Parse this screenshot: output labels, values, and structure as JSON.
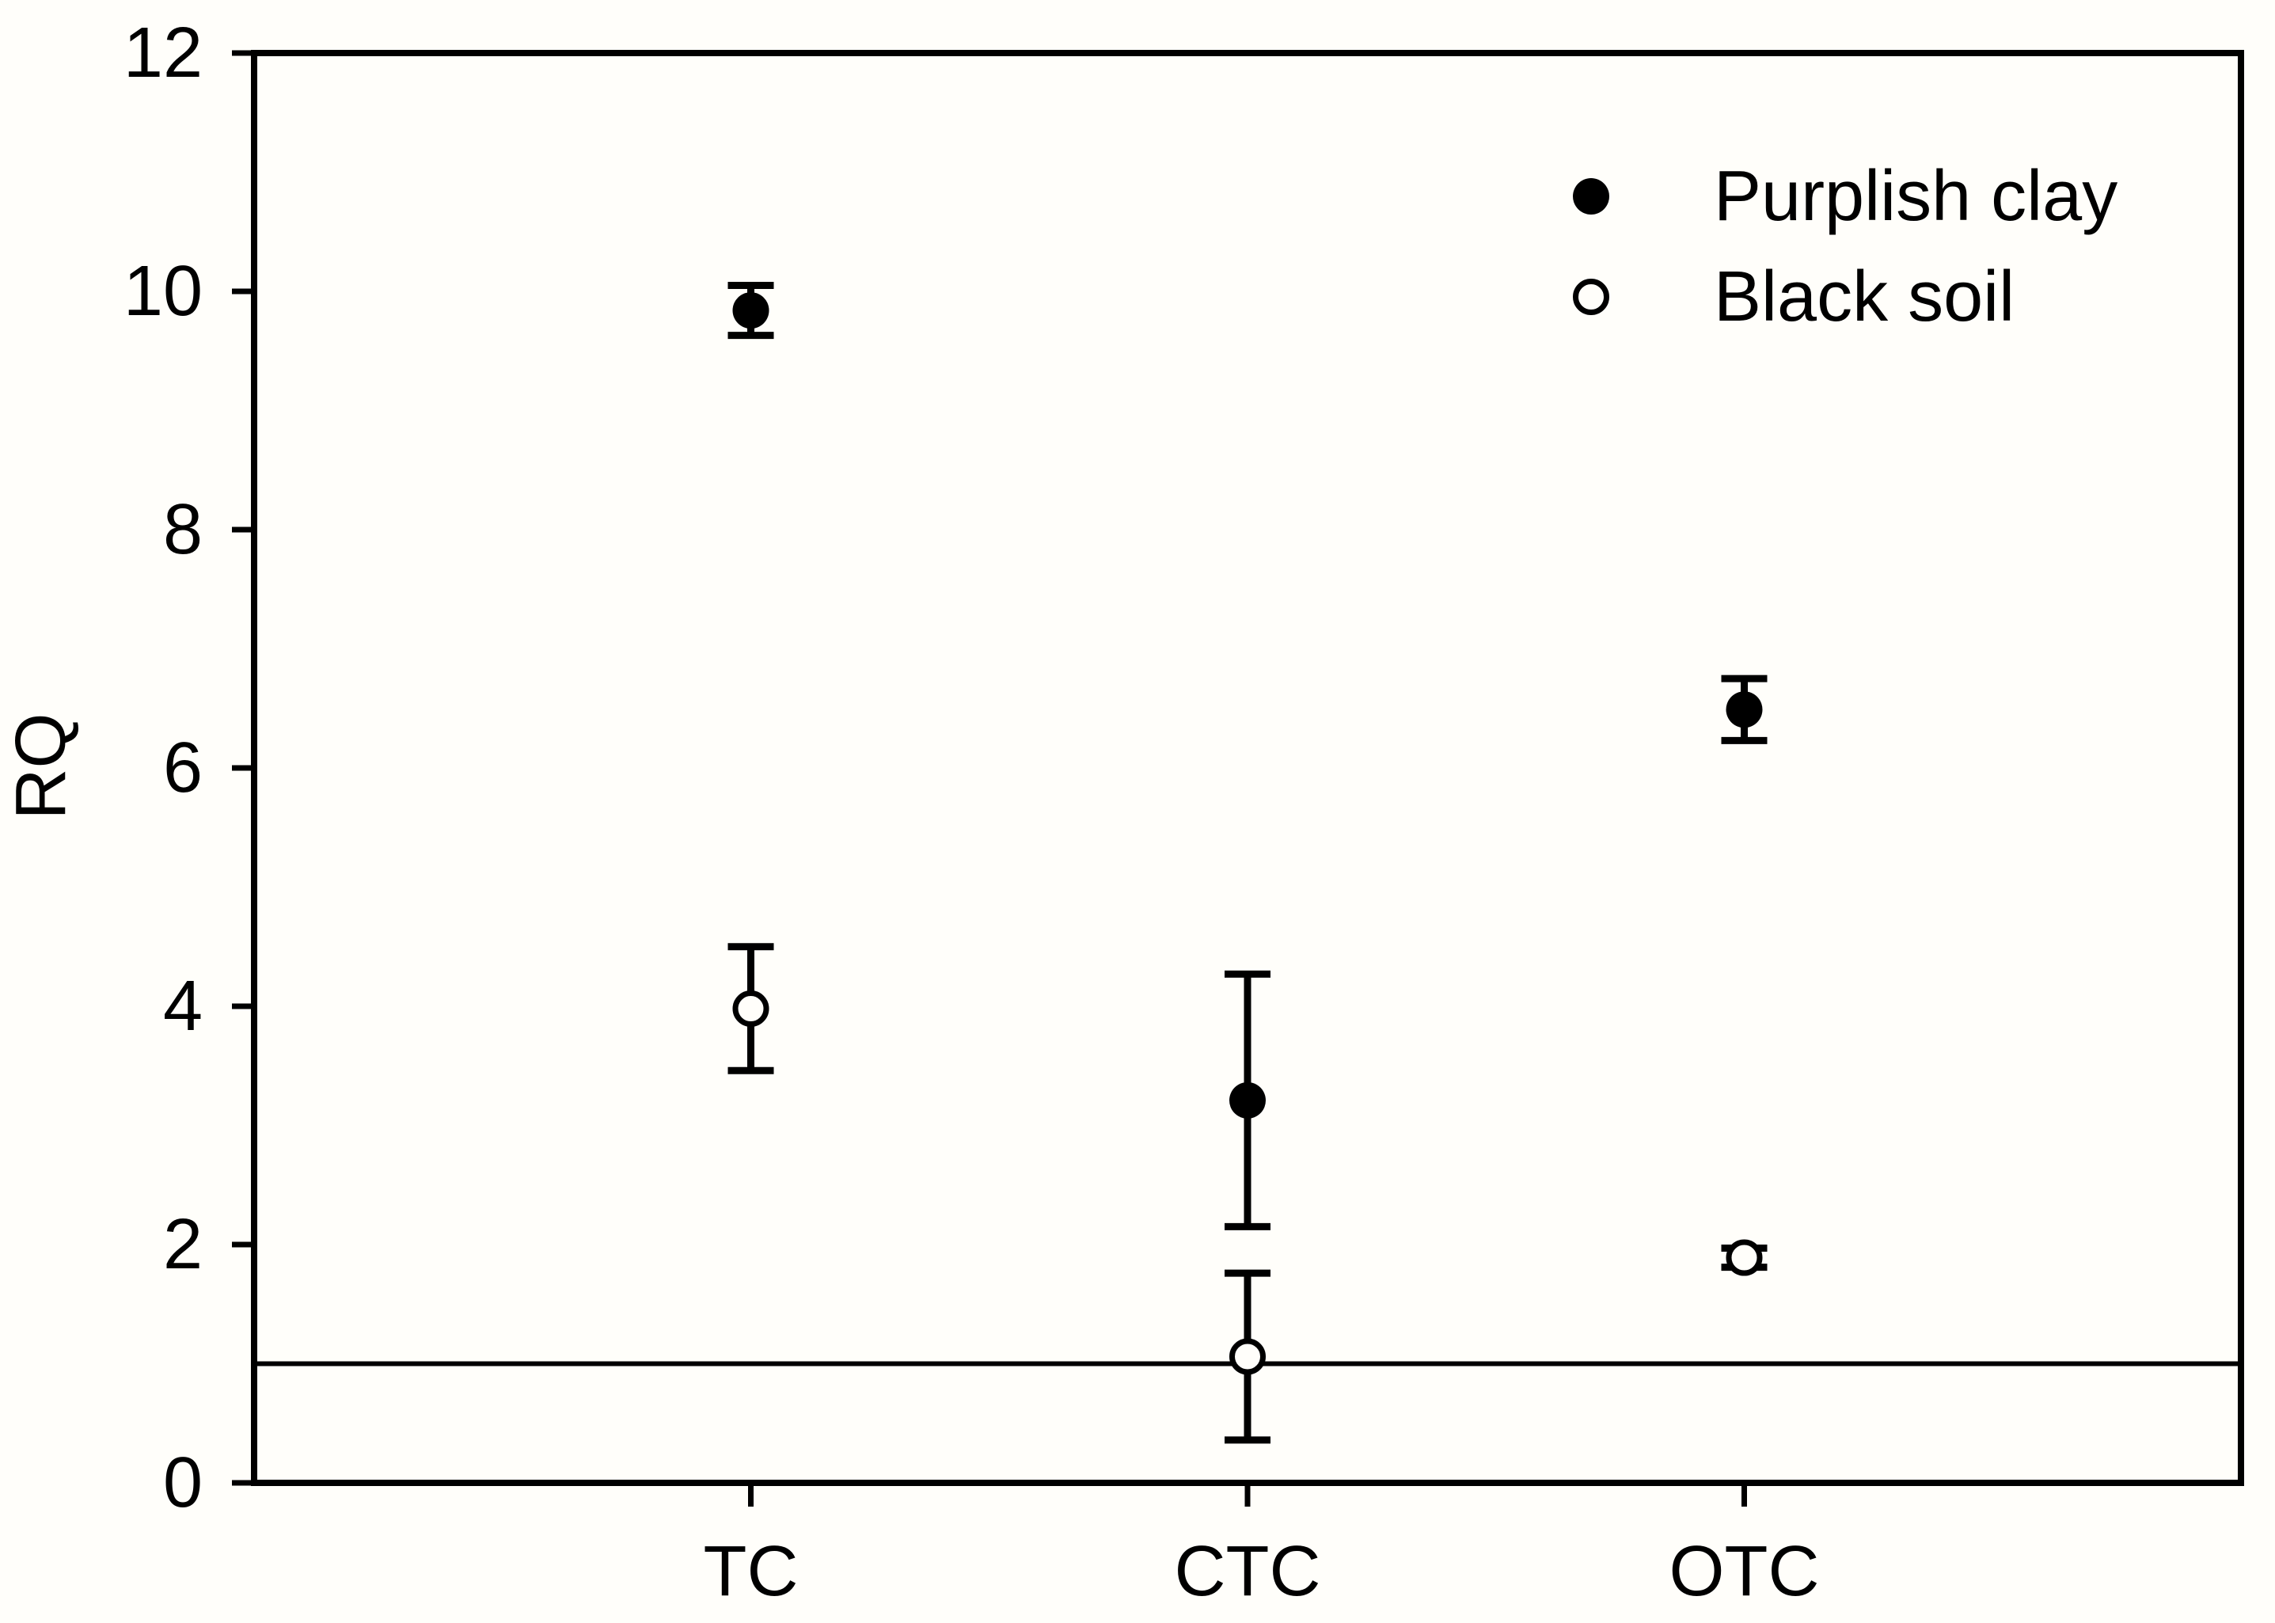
{
  "figure": {
    "background_color": "#fffefa",
    "ink_color": "#000000"
  },
  "chart_data": {
    "type": "scatter",
    "title": "",
    "xlabel": "",
    "ylabel": "RQ",
    "ylim": [
      0,
      12
    ],
    "yticks": [
      0,
      2,
      4,
      6,
      8,
      10,
      12
    ],
    "categories": [
      "TC",
      "CTC",
      "OTC"
    ],
    "reference_line_y": 1,
    "grid": false,
    "legend_position": "top-right-inside",
    "error_bars": true,
    "series": [
      {
        "name": "Purplish clay",
        "marker": "filled-circle",
        "values": [
          9.84,
          3.21,
          6.49
        ],
        "errors": [
          0.21,
          1.06,
          0.26
        ]
      },
      {
        "name": "Black soil",
        "marker": "open-circle",
        "values": [
          3.98,
          1.06,
          1.89
        ],
        "errors": [
          0.52,
          0.7,
          0.08
        ]
      }
    ]
  }
}
